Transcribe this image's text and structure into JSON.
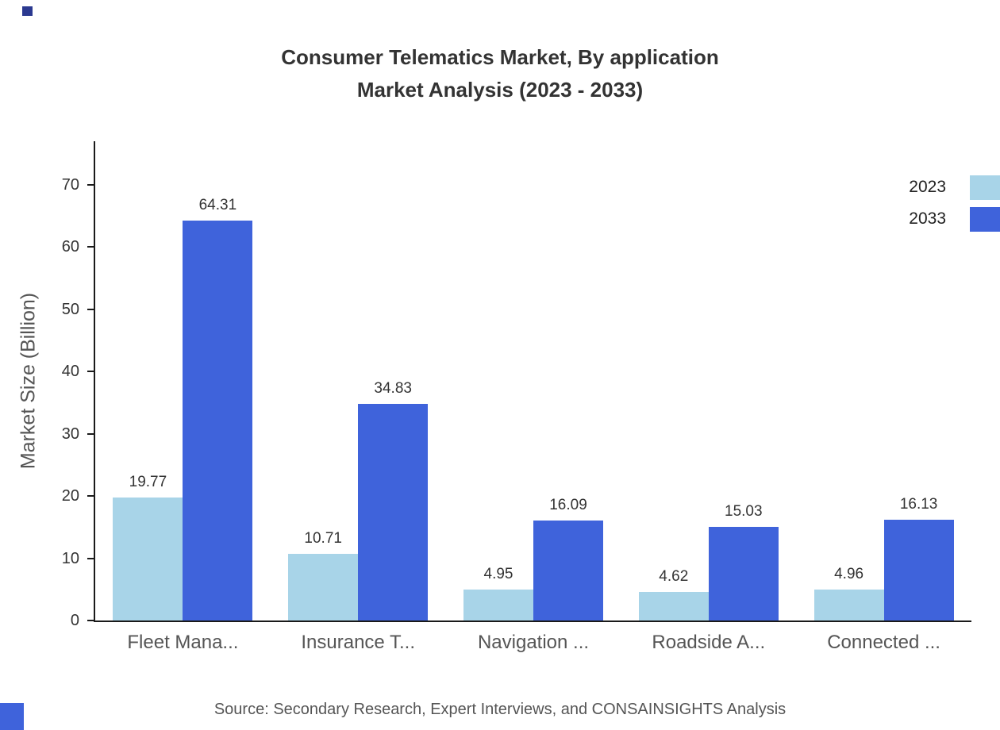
{
  "title": {
    "line1": "Consumer Telematics Market, By application",
    "line2": "Market Analysis (2023 - 2033)"
  },
  "chart_data": {
    "type": "bar",
    "categories": [
      "Fleet Mana...",
      "Insurance T...",
      "Navigation ...",
      "Roadside A...",
      "Connected ..."
    ],
    "series": [
      {
        "name": "2023",
        "color": "#A8D4E8",
        "values": [
          19.77,
          10.71,
          4.95,
          4.62,
          4.96
        ]
      },
      {
        "name": "2033",
        "color": "#3F63DB",
        "values": [
          64.31,
          34.83,
          16.09,
          15.03,
          16.13
        ]
      }
    ],
    "title": "Consumer Telematics Market, By application Market Analysis (2023 - 2033)",
    "xlabel": "",
    "ylabel": "Market Size (Billion)",
    "ylim": [
      0,
      77
    ],
    "yticks": [
      0,
      10,
      20,
      30,
      40,
      50,
      60,
      70
    ],
    "grid": false,
    "legend_position": "top-right",
    "value_labels": true
  },
  "source": "Source: Secondary Research, Expert Interviews, and CONSAINSIGHTS Analysis"
}
